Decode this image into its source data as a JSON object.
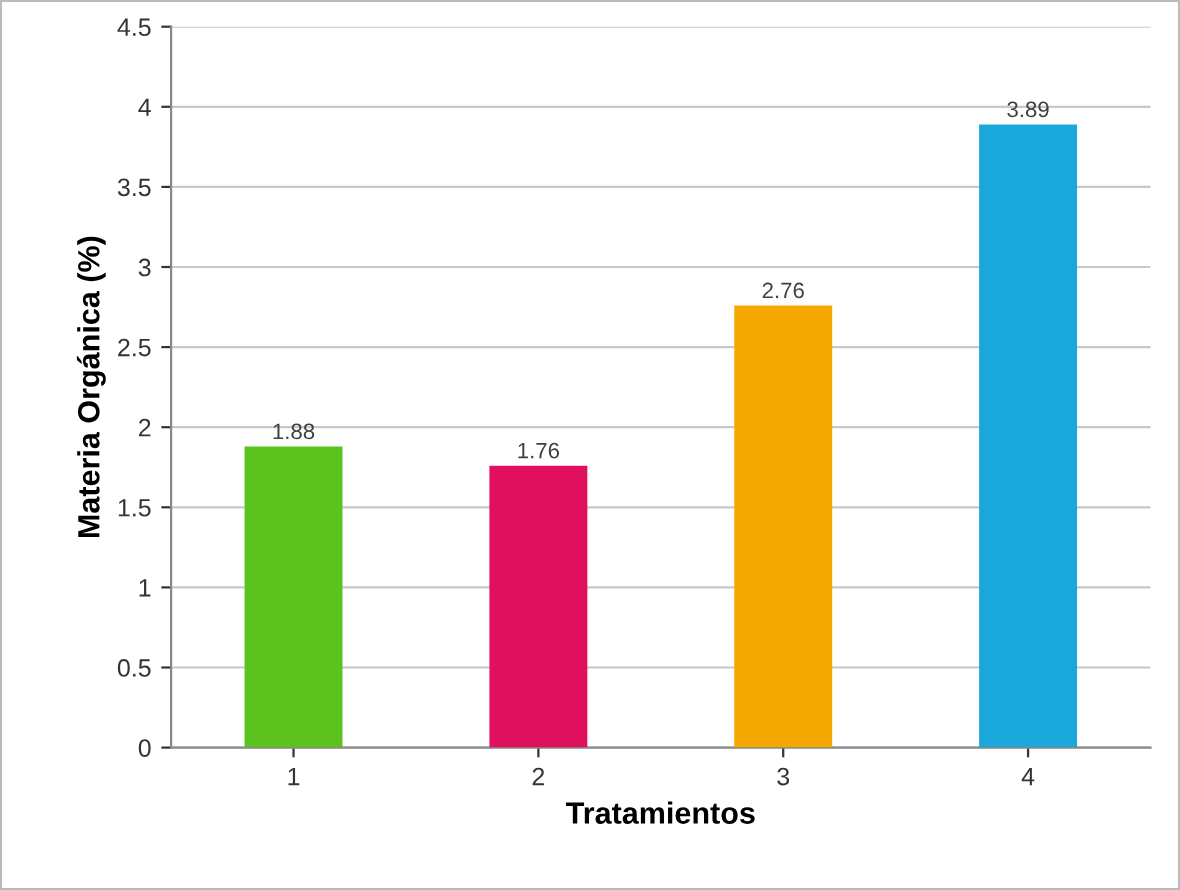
{
  "chart_data": {
    "type": "bar",
    "xlabel": "Tratamientos",
    "ylabel": "Materia Orgánica (%)",
    "categories": [
      "1",
      "2",
      "3",
      "4"
    ],
    "values": [
      1.88,
      1.76,
      2.76,
      3.89
    ],
    "colors": [
      "#5cc21e",
      "#e0105e",
      "#f5a800",
      "#1aa7d9"
    ],
    "ylim": [
      0,
      4.5
    ],
    "yticks": [
      0,
      0.5,
      1,
      1.5,
      2,
      2.5,
      3,
      3.5,
      4,
      4.5
    ],
    "grid": "y",
    "data_labels": true
  }
}
